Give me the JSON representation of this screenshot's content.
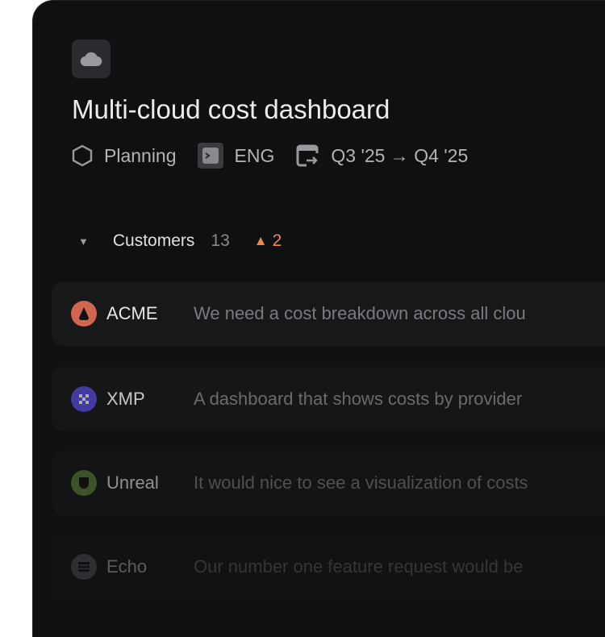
{
  "project": {
    "title": "Multi-cloud cost dashboard",
    "status": "Planning",
    "team": "ENG",
    "timeline": "Q3 '25 → Q4 '25",
    "icon": "cloud-icon"
  },
  "section": {
    "label": "Customers",
    "count": "13",
    "warning_count": "2",
    "warning_color": "#f0874a"
  },
  "customers": [
    {
      "name": "ACME",
      "request": "We need a cost breakdown across all clou",
      "color": "#d2654f"
    },
    {
      "name": "XMP",
      "request": "A dashboard that shows costs by provider",
      "color": "#4a42b8"
    },
    {
      "name": "Unreal",
      "request": "It would nice to see a visualization of costs",
      "color": "#5e7f36"
    },
    {
      "name": "Echo",
      "request": "Our number one feature request would be",
      "color": "#3a3b3e"
    }
  ]
}
